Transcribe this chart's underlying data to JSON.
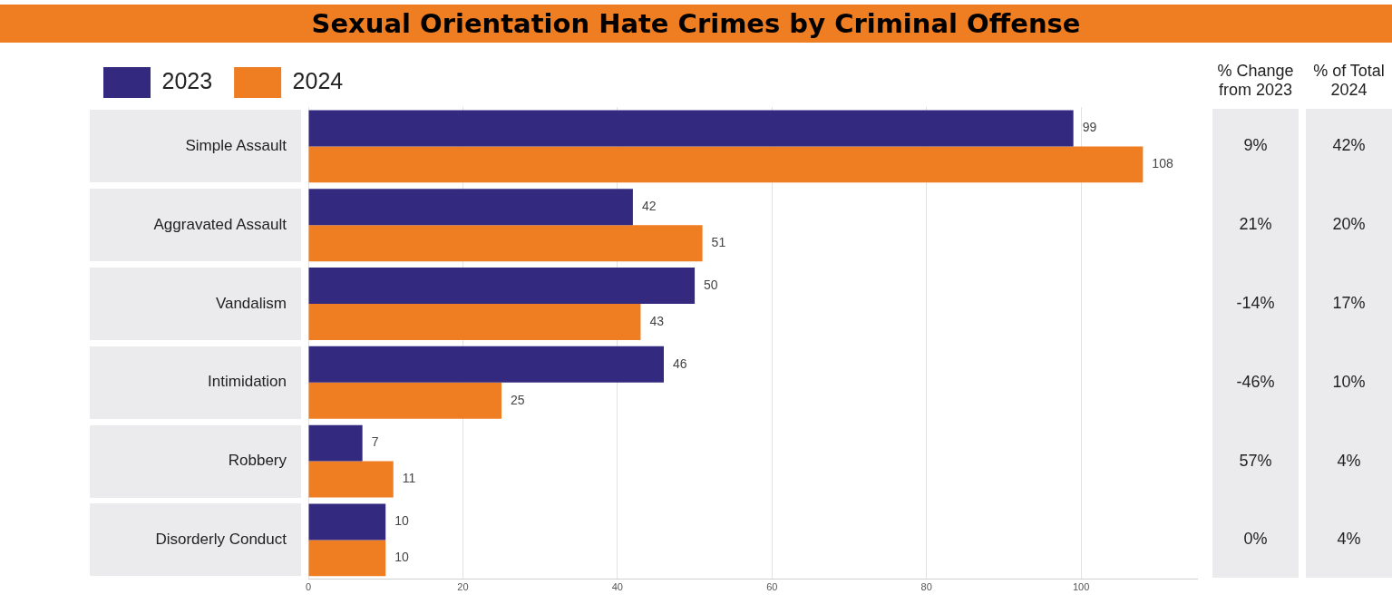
{
  "chart_data": {
    "type": "bar",
    "orientation": "horizontal",
    "title": "Sexual Orientation Hate Crimes by Criminal Offense",
    "categories": [
      "Simple Assault",
      "Aggravated Assault",
      "Vandalism",
      "Intimidation",
      "Robbery",
      "Disorderly Conduct"
    ],
    "series": [
      {
        "name": "2023",
        "color": "#332a80",
        "values": [
          99,
          42,
          50,
          46,
          7,
          10
        ]
      },
      {
        "name": "2024",
        "color": "#ef7d22",
        "values": [
          108,
          51,
          43,
          25,
          11,
          10
        ]
      }
    ],
    "xlim": [
      0,
      115
    ],
    "xticks": [
      0,
      20,
      40,
      60,
      80,
      100
    ],
    "grid": "x",
    "legend": "top left",
    "data_labels": true,
    "annotations": [
      "% Change from 2023",
      "% of Total 2024",
      "9%",
      "42%",
      "21%",
      "20%",
      "-14%",
      "17%",
      "-46%",
      "10%",
      "57%",
      "4%",
      "0%",
      "4%"
    ]
  }
}
